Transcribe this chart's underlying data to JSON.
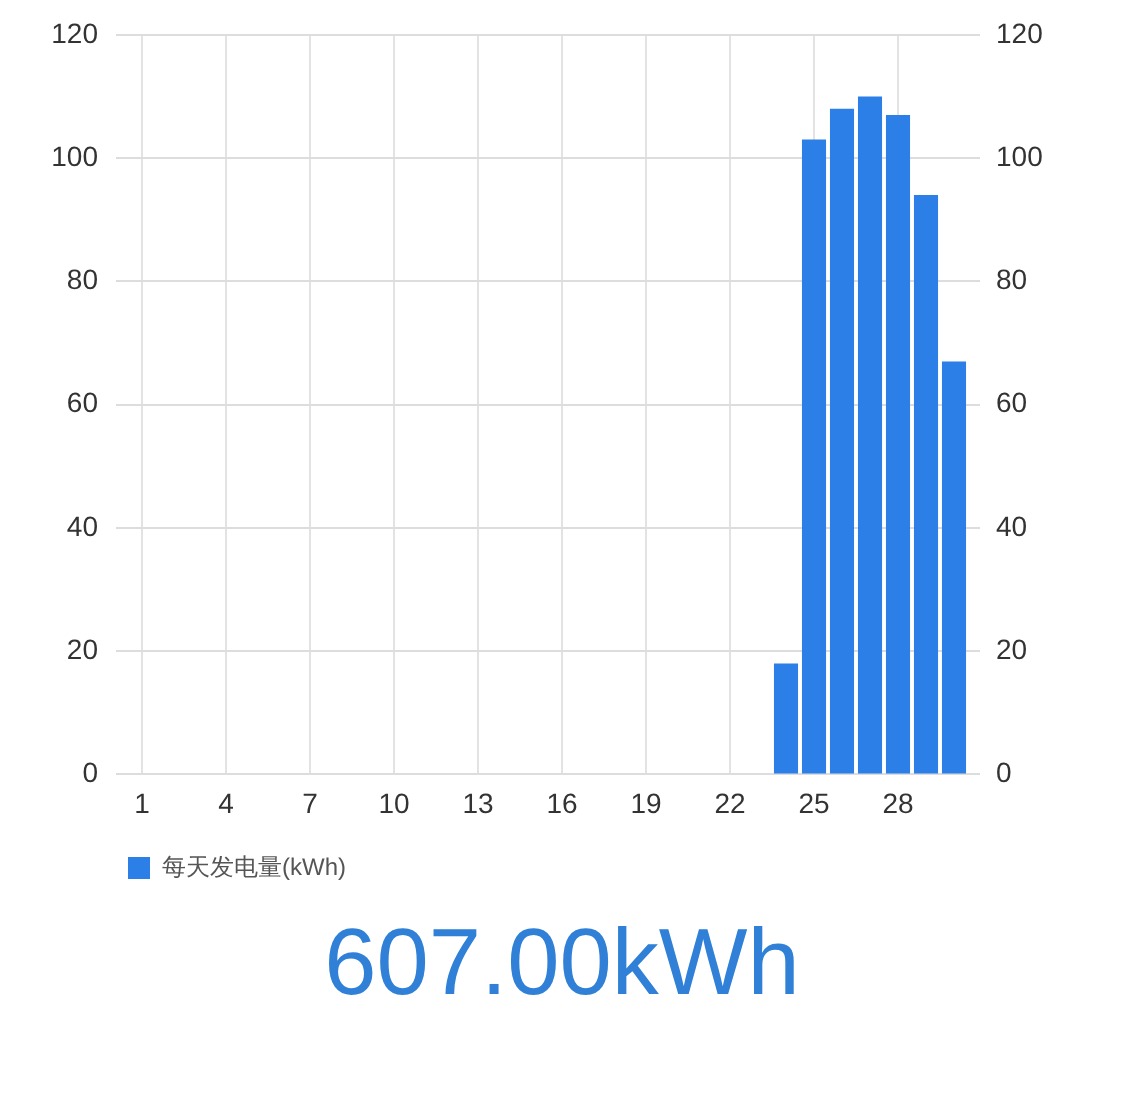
{
  "chart_data": {
    "type": "bar",
    "categories": [
      "1",
      null,
      null,
      "4",
      null,
      null,
      "7",
      null,
      null,
      "10",
      null,
      null,
      "13",
      null,
      null,
      "16",
      null,
      null,
      "19",
      null,
      null,
      "22",
      null,
      null,
      "25",
      null,
      null,
      "28",
      null,
      null
    ],
    "series": [
      {
        "name": "每天发电量(kWh)",
        "color": "#2b7fe6",
        "values": [
          null,
          null,
          null,
          null,
          null,
          null,
          null,
          null,
          null,
          null,
          null,
          null,
          null,
          null,
          null,
          null,
          null,
          null,
          null,
          null,
          null,
          null,
          null,
          18,
          103,
          108,
          110,
          107,
          94,
          67
        ]
      }
    ],
    "ylim": [
      0,
      120
    ],
    "yticks": [
      0,
      20,
      40,
      60,
      80,
      100,
      120
    ],
    "y2lim": [
      0,
      120
    ],
    "y2ticks": [
      0,
      20,
      40,
      60,
      80,
      100,
      120
    ],
    "grid": true,
    "legend": "bottom left",
    "annotations": [
      "607.00kWh"
    ]
  }
}
